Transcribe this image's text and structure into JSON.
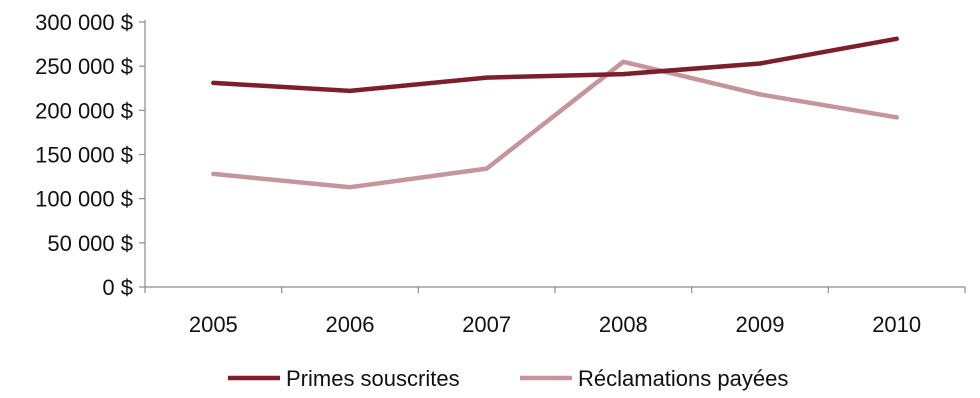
{
  "chart_data": {
    "type": "line",
    "categories": [
      "2005",
      "2006",
      "2007",
      "2008",
      "2009",
      "2010"
    ],
    "series": [
      {
        "name": "Primes souscrites",
        "values": [
          231000,
          222000,
          237000,
          241000,
          253000,
          281000
        ],
        "color": "#7b1f2d"
      },
      {
        "name": "Réclamations payées",
        "values": [
          128000,
          113000,
          134000,
          255000,
          218000,
          192000
        ],
        "color": "#c4969b"
      }
    ],
    "ylim": [
      0,
      300000
    ],
    "y_ticks": [
      {
        "value": 0,
        "label": "0 $"
      },
      {
        "value": 50000,
        "label": "50 000 $"
      },
      {
        "value": 100000,
        "label": "100 000 $"
      },
      {
        "value": 150000,
        "label": "150 000 $"
      },
      {
        "value": 200000,
        "label": "200 000 $"
      },
      {
        "value": 250000,
        "label": "250 000 $"
      },
      {
        "value": 300000,
        "label": "300 000 $"
      }
    ],
    "title": "",
    "xlabel": "",
    "ylabel": "",
    "grid": false,
    "legend_position": "bottom"
  }
}
